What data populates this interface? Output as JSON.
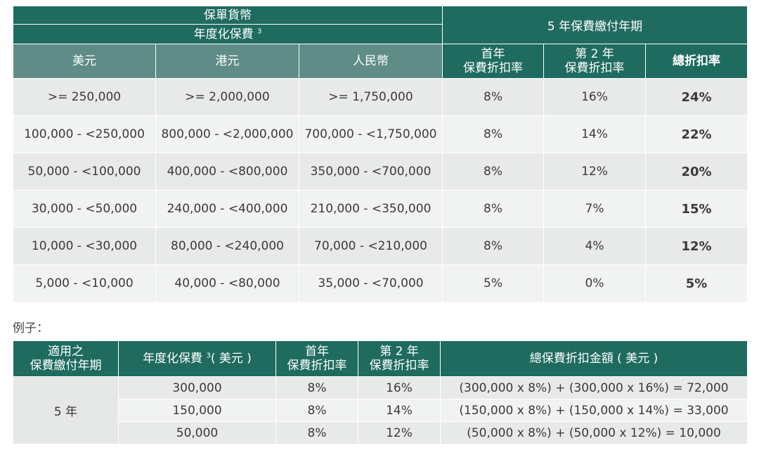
{
  "main_table": {
    "header_currency_group": "保單貨幣",
    "header_premium": "年度化保費",
    "header_premium_note": "3",
    "header_period": "5 年保費繳付年期",
    "col_usd": "美元",
    "col_hkd": "港元",
    "col_rmb": "人民幣",
    "col_first_year": [
      "首年",
      "保費折扣率"
    ],
    "col_second_year": [
      "第 2 年",
      "保費折扣率"
    ],
    "col_total": "總折扣率",
    "rows": [
      {
        "usd": ">= 250,000",
        "hkd": ">= 2,000,000",
        "rmb": ">= 1,750,000",
        "y1": "8%",
        "y2": "16%",
        "total": "24%"
      },
      {
        "usd": "100,000 - <250,000",
        "hkd": "800,000 - <2,000,000",
        "rmb": "700,000 - <1,750,000",
        "y1": "8%",
        "y2": "14%",
        "total": "22%"
      },
      {
        "usd": "50,000 - <100,000",
        "hkd": "400,000 - <800,000",
        "rmb": "350,000 - <700,000",
        "y1": "8%",
        "y2": "12%",
        "total": "20%"
      },
      {
        "usd": "30,000 - <50,000",
        "hkd": "240,000 - <400,000",
        "rmb": "210,000 - <350,000",
        "y1": "8%",
        "y2": "7%",
        "total": "15%"
      },
      {
        "usd": "10,000 - <30,000",
        "hkd": "80,000 - <240,000",
        "rmb": "70,000 - <210,000",
        "y1": "8%",
        "y2": "4%",
        "total": "12%"
      },
      {
        "usd": "5,000 - <10,000",
        "hkd": "40,000 - <80,000",
        "rmb": "35,000 - <70,000",
        "y1": "5%",
        "y2": "0%",
        "total": "5%"
      }
    ]
  },
  "example_label": "例子：",
  "example_table": {
    "col_period": [
      "適用之",
      "保費繳付年期"
    ],
    "col_premium": "年度化保費",
    "col_premium_note": "3",
    "col_premium_suffix": "( 美元 )",
    "col_first_year": [
      "首年",
      "保費折扣率"
    ],
    "col_second_year": [
      "第 2 年",
      "保費折扣率"
    ],
    "col_total": "總保費折扣金額 ( 美元 )",
    "period_value": "5 年",
    "rows": [
      {
        "premium": "300,000",
        "y1": "8%",
        "y2": "16%",
        "total": "(300,000 x 8%) + (300,000 x 16%) = 72,000"
      },
      {
        "premium": "150,000",
        "y1": "8%",
        "y2": "14%",
        "total": "(150,000 x 8%) + (150,000 x 14%) = 33,000"
      },
      {
        "premium": "50,000",
        "y1": "8%",
        "y2": "12%",
        "total": "(50,000 x 8%) + (50,000 x 12%) = 10,000"
      }
    ]
  }
}
